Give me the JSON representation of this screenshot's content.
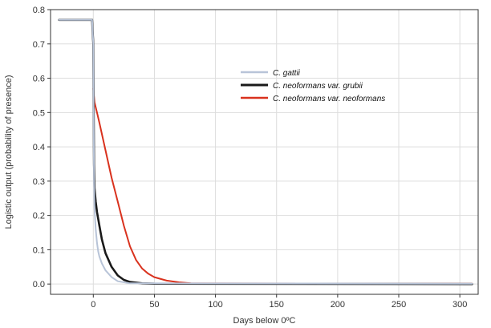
{
  "chart_data": {
    "type": "line",
    "xlabel": "Days below 0ºC",
    "ylabel": "Logistic output (probability of presence)",
    "xlim": [
      -35,
      315
    ],
    "ylim": [
      -0.03,
      0.8
    ],
    "xticks": [
      0,
      50,
      100,
      150,
      200,
      250,
      300
    ],
    "yticks": [
      0.0,
      0.1,
      0.2,
      0.3,
      0.4,
      0.5,
      0.6,
      0.7,
      0.8
    ],
    "xtick_labels": [
      "0",
      "50",
      "100",
      "150",
      "200",
      "250",
      "300"
    ],
    "ytick_labels": [
      "0.0",
      "0.1",
      "0.2",
      "0.3",
      "0.4",
      "0.5",
      "0.6",
      "0.7",
      "0.8"
    ],
    "grid": true,
    "legend_position": "top-right",
    "series": [
      {
        "name": "C. gattii",
        "color": "#b8c4d8",
        "x": [
          -28,
          -1,
          0,
          0.3,
          0.6,
          1,
          2,
          3,
          4,
          5,
          7,
          10,
          15,
          20,
          30,
          310
        ],
        "y": [
          0.77,
          0.77,
          0.7,
          0.45,
          0.3,
          0.22,
          0.16,
          0.12,
          0.095,
          0.08,
          0.06,
          0.04,
          0.02,
          0.008,
          0.002,
          0.001
        ]
      },
      {
        "name": "C. neoformans var. grubii",
        "color": "#1a1a1a",
        "x": [
          -28,
          -1,
          0,
          0.3,
          0.6,
          1,
          2,
          3,
          5,
          7,
          10,
          15,
          20,
          25,
          30,
          40,
          50,
          310
        ],
        "y": [
          0.77,
          0.77,
          0.7,
          0.5,
          0.35,
          0.28,
          0.24,
          0.21,
          0.17,
          0.13,
          0.09,
          0.05,
          0.025,
          0.012,
          0.006,
          0.002,
          0.001,
          0.0
        ]
      },
      {
        "name": "C. neoformans var. neoformans",
        "color": "#d9321e",
        "x": [
          0,
          1,
          3,
          5,
          10,
          15,
          20,
          25,
          30,
          35,
          40,
          45,
          50,
          60,
          70,
          80,
          310
        ],
        "y": [
          0.57,
          0.53,
          0.5,
          0.47,
          0.39,
          0.31,
          0.24,
          0.17,
          0.11,
          0.07,
          0.045,
          0.03,
          0.02,
          0.01,
          0.005,
          0.002,
          0.001
        ]
      }
    ]
  }
}
